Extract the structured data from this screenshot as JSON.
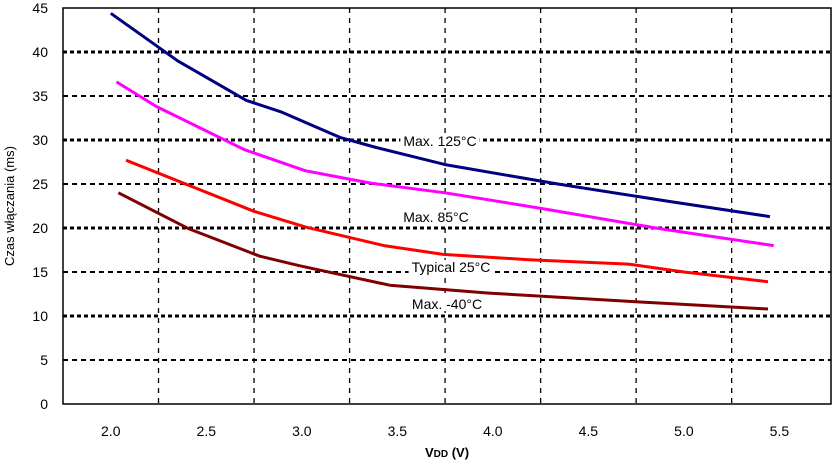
{
  "chart_data": {
    "type": "line",
    "title": "",
    "xlabel": "VDD (V)",
    "xlabel_main": "V",
    "xlabel_sub": "DD",
    "xlabel_unit": " (V)",
    "ylabel": "Czas włączania (ms)",
    "xlim": [
      1.75,
      5.77
    ],
    "ylim": [
      0,
      45
    ],
    "x_ticks": [
      2.0,
      2.5,
      3.0,
      3.5,
      4.0,
      4.5,
      5.0,
      5.5
    ],
    "x_tick_labels": [
      "2.0",
      "2.5",
      "3.0",
      "3.5",
      "4.0",
      "4.5",
      "5.0",
      "5.5"
    ],
    "y_ticks": [
      0,
      5,
      10,
      15,
      20,
      25,
      30,
      35,
      40,
      45
    ],
    "y_tick_labels": [
      "0",
      "5",
      "10",
      "15",
      "20",
      "25",
      "30",
      "35",
      "40",
      "45"
    ],
    "x_gridlines": [
      2.25,
      2.75,
      3.25,
      3.75,
      4.25,
      4.75,
      5.25
    ],
    "y_gridlines": [
      5,
      10,
      15,
      20,
      25,
      30,
      35,
      40
    ],
    "grid": true,
    "legend": "inline labels",
    "series": [
      {
        "name": "Max. 125°C",
        "color": "#000080",
        "x": [
          2.0,
          2.35,
          2.71,
          2.89,
          3.2,
          3.38,
          3.75,
          4.34,
          4.93,
          5.45
        ],
        "y": [
          44.4,
          39.0,
          34.5,
          33.2,
          30.3,
          29.2,
          27.2,
          25.0,
          23.0,
          21.3
        ]
      },
      {
        "name": "Max. 85°C",
        "color": "#ff00ff",
        "x": [
          2.03,
          2.24,
          2.7,
          3.02,
          3.36,
          3.75,
          4.26,
          4.88,
          5.47
        ],
        "y": [
          36.6,
          33.8,
          28.9,
          26.5,
          25.1,
          24.0,
          22.2,
          19.9,
          18.0
        ]
      },
      {
        "name": "Typical 25°C",
        "color": "#ff0000",
        "x": [
          2.08,
          2.75,
          3.02,
          3.43,
          3.74,
          4.19,
          4.71,
          5.0,
          5.44
        ],
        "y": [
          27.7,
          21.9,
          20.1,
          18.0,
          17.0,
          16.4,
          15.9,
          15.0,
          13.9
        ]
      },
      {
        "name": "Max. -40°C",
        "color": "#800000",
        "x": [
          2.04,
          2.41,
          2.78,
          2.99,
          3.46,
          3.98,
          4.76,
          5.44
        ],
        "y": [
          24.0,
          19.9,
          16.8,
          15.7,
          13.5,
          12.6,
          11.6,
          10.8
        ]
      }
    ]
  }
}
